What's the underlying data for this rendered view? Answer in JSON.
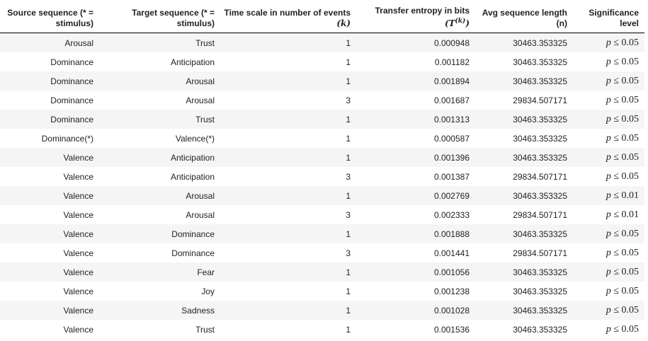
{
  "headers": {
    "source": "Source sequence (* = stimulus)",
    "target": "Target sequence (* = stimulus)",
    "timescale_text": "Time scale in number of events",
    "timescale_symbol": "(k)",
    "te_text": "Transfer entropy in bits",
    "te_symbol_open": "(T",
    "te_symbol_sup": "(k)",
    "te_symbol_close": ")",
    "avg_len": "Avg sequence length (n)",
    "significance": "Significance level"
  },
  "rows": [
    {
      "source": "Arousal",
      "target": "Trust",
      "k": "1",
      "te": "0.000948",
      "n": "30463.353325",
      "p": "p",
      "rel": "≤",
      "level": "0.05"
    },
    {
      "source": "Dominance",
      "target": "Anticipation",
      "k": "1",
      "te": "0.001182",
      "n": "30463.353325",
      "p": "p",
      "rel": "≤",
      "level": "0.05"
    },
    {
      "source": "Dominance",
      "target": "Arousal",
      "k": "1",
      "te": "0.001894",
      "n": "30463.353325",
      "p": "p",
      "rel": "≤",
      "level": "0.05"
    },
    {
      "source": "Dominance",
      "target": "Arousal",
      "k": "3",
      "te": "0.001687",
      "n": "29834.507171",
      "p": "p",
      "rel": "≤",
      "level": "0.05"
    },
    {
      "source": "Dominance",
      "target": "Trust",
      "k": "1",
      "te": "0.001313",
      "n": "30463.353325",
      "p": "p",
      "rel": "≤",
      "level": "0.05"
    },
    {
      "source": "Dominance(*)",
      "target": "Valence(*)",
      "k": "1",
      "te": "0.000587",
      "n": "30463.353325",
      "p": "p",
      "rel": "≤",
      "level": "0.05"
    },
    {
      "source": "Valence",
      "target": "Anticipation",
      "k": "1",
      "te": "0.001396",
      "n": "30463.353325",
      "p": "p",
      "rel": "≤",
      "level": "0.05"
    },
    {
      "source": "Valence",
      "target": "Anticipation",
      "k": "3",
      "te": "0.001387",
      "n": "29834.507171",
      "p": "p",
      "rel": "≤",
      "level": "0.05"
    },
    {
      "source": "Valence",
      "target": "Arousal",
      "k": "1",
      "te": "0.002769",
      "n": "30463.353325",
      "p": "p",
      "rel": "≤",
      "level": "0.01"
    },
    {
      "source": "Valence",
      "target": "Arousal",
      "k": "3",
      "te": "0.002333",
      "n": "29834.507171",
      "p": "p",
      "rel": "≤",
      "level": "0.01"
    },
    {
      "source": "Valence",
      "target": "Dominance",
      "k": "1",
      "te": "0.001888",
      "n": "30463.353325",
      "p": "p",
      "rel": "≤",
      "level": "0.05"
    },
    {
      "source": "Valence",
      "target": "Dominance",
      "k": "3",
      "te": "0.001441",
      "n": "29834.507171",
      "p": "p",
      "rel": "≤",
      "level": "0.05"
    },
    {
      "source": "Valence",
      "target": "Fear",
      "k": "1",
      "te": "0.001056",
      "n": "30463.353325",
      "p": "p",
      "rel": "≤",
      "level": "0.05"
    },
    {
      "source": "Valence",
      "target": "Joy",
      "k": "1",
      "te": "0.001238",
      "n": "30463.353325",
      "p": "p",
      "rel": "≤",
      "level": "0.05"
    },
    {
      "source": "Valence",
      "target": "Sadness",
      "k": "1",
      "te": "0.001028",
      "n": "30463.353325",
      "p": "p",
      "rel": "≤",
      "level": "0.05"
    },
    {
      "source": "Valence",
      "target": "Trust",
      "k": "1",
      "te": "0.001536",
      "n": "30463.353325",
      "p": "p",
      "rel": "≤",
      "level": "0.05"
    }
  ]
}
